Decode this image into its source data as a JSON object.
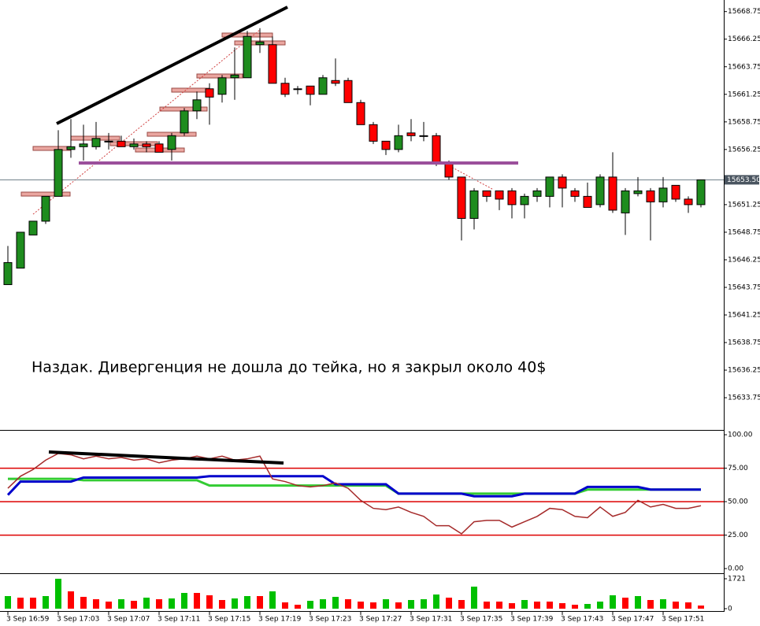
{
  "chart_data": [
    {
      "type": "candlestick",
      "annotation": "Наздак. Дивергенция не дошла до тейка, но я закрыл около 40$",
      "open": [
        15644.0,
        15645.5,
        15648.5,
        15649.75,
        15652.0,
        15656.25,
        15656.5,
        15656.5,
        15657.0,
        15657.0,
        15656.5,
        15656.75,
        15656.75,
        15656.25,
        15657.75,
        15659.75,
        15661.75,
        15661.25,
        15662.75,
        15662.75,
        15665.75,
        15665.75,
        15662.25,
        15661.75,
        15662.0,
        15661.25,
        15662.5,
        15662.5,
        15660.5,
        15658.5,
        15657.0,
        15656.25,
        15657.75,
        15657.5,
        15657.5,
        15655.0,
        15653.75,
        15650.0,
        15652.5,
        15652.5,
        15652.5,
        15651.25,
        15652.0,
        15652.0,
        15653.75,
        15652.5,
        15652.0,
        15651.25,
        15653.75,
        15650.5,
        15652.25,
        15652.5,
        15651.5,
        15653.0,
        15651.75,
        15651.25
      ],
      "high": [
        15647.5,
        15648.75,
        15649.75,
        15652.0,
        15658.0,
        15659.0,
        15658.5,
        15658.75,
        15657.75,
        15657.5,
        15657.25,
        15657.0,
        15657.0,
        15657.75,
        15660.0,
        15661.5,
        15662.25,
        15663.0,
        15665.5,
        15667.0,
        15667.25,
        15666.5,
        15662.75,
        15662.0,
        15662.0,
        15663.0,
        15664.5,
        15662.75,
        15660.75,
        15658.75,
        15657.0,
        15658.5,
        15659.0,
        15658.75,
        15657.75,
        15655.25,
        15653.75,
        15652.75,
        15652.5,
        15652.5,
        15652.75,
        15652.25,
        15652.75,
        15653.75,
        15654.0,
        15652.75,
        15653.25,
        15654.0,
        15656.0,
        15652.75,
        15653.75,
        15652.75,
        15653.75,
        15653.0,
        15652.0,
        15653.5
      ],
      "low": [
        15644.0,
        15645.5,
        15648.5,
        15649.5,
        15652.0,
        15655.5,
        15655.25,
        15656.25,
        15656.25,
        15656.5,
        15656.25,
        15656.0,
        15656.0,
        15655.25,
        15657.5,
        15659.0,
        15658.5,
        15660.5,
        15660.75,
        15662.75,
        15665.0,
        15662.25,
        15661.0,
        15661.25,
        15660.25,
        15661.25,
        15662.0,
        15660.5,
        15658.5,
        15656.75,
        15655.75,
        15656.0,
        15657.0,
        15657.0,
        15654.75,
        15653.5,
        15648.0,
        15649.0,
        15651.5,
        15650.75,
        15650.0,
        15650.0,
        15651.5,
        15651.0,
        15651.0,
        15651.5,
        15651.0,
        15651.0,
        15650.5,
        15648.5,
        15652.0,
        15648.0,
        15651.0,
        15651.5,
        15650.5,
        15651.0
      ],
      "close": [
        15646.0,
        15648.75,
        15649.75,
        15652.0,
        15656.25,
        15656.5,
        15656.75,
        15657.25,
        15657.0,
        15656.5,
        15656.75,
        15656.5,
        15656.0,
        15657.5,
        15659.75,
        15660.75,
        15661.0,
        15662.75,
        15663.0,
        15666.5,
        15666.0,
        15662.25,
        15661.25,
        15661.75,
        15661.25,
        15662.75,
        15662.25,
        15660.5,
        15658.5,
        15657.0,
        15656.25,
        15657.5,
        15657.5,
        15657.5,
        15655.0,
        15653.75,
        15650.0,
        15652.5,
        15652.0,
        15651.75,
        15651.25,
        15652.0,
        15652.5,
        15653.75,
        15652.75,
        15652.0,
        15651.0,
        15653.75,
        15650.75,
        15652.5,
        15652.5,
        15651.5,
        15652.75,
        15651.75,
        15651.25,
        15653.5
      ],
      "up_color": "#1e8c1e",
      "down_color": "#ff0000",
      "last_price": {
        "value": 15653.5,
        "label": "15653.50"
      },
      "ylim": [
        15630.9,
        15669.8
      ],
      "yticks": [
        15668.75,
        15666.25,
        15663.75,
        15661.25,
        15658.75,
        15656.25,
        15651.25,
        15648.75,
        15646.25,
        15643.75,
        15641.25,
        15638.75,
        15636.25,
        15633.75
      ]
    },
    {
      "type": "line",
      "series": [
        {
          "color": "#33cc33",
          "values": [
            67,
            67,
            67,
            67,
            67,
            67,
            66,
            66,
            66,
            66,
            66,
            66,
            66,
            66,
            66,
            66,
            62,
            62,
            62,
            62,
            62,
            62,
            62,
            62,
            62,
            62,
            62,
            62,
            62,
            62,
            62,
            56,
            56,
            56,
            56,
            56,
            56,
            56,
            56,
            56,
            56,
            56,
            56,
            56,
            56,
            56,
            59,
            59,
            59,
            59,
            59,
            59,
            59,
            59,
            59,
            59
          ]
        },
        {
          "color": "#0000cc",
          "values": [
            55,
            65,
            65,
            65,
            65,
            65,
            68,
            68,
            68,
            68,
            68,
            68,
            68,
            68,
            68,
            68,
            69,
            69,
            69,
            69,
            69,
            69,
            69,
            69,
            69,
            69,
            63,
            63,
            63,
            63,
            63,
            56,
            56,
            56,
            56,
            56,
            56,
            54,
            54,
            54,
            54,
            56,
            56,
            56,
            56,
            56,
            61,
            61,
            61,
            61,
            61,
            59,
            59,
            59,
            59,
            59
          ]
        },
        {
          "color": "#a52a2a",
          "values": [
            60,
            69,
            74,
            81,
            86,
            85,
            82,
            84,
            82,
            83,
            81,
            82,
            79,
            81,
            82,
            84,
            82,
            84,
            81,
            82,
            84,
            67,
            65,
            62,
            61,
            62,
            64,
            60,
            51,
            45,
            44,
            46,
            42,
            39,
            32,
            32,
            26,
            35,
            36,
            36,
            31,
            35,
            39,
            45,
            44,
            39,
            38,
            46,
            39,
            42,
            51,
            46,
            48,
            45,
            45,
            47
          ]
        }
      ],
      "levels": [
        75,
        50,
        25
      ],
      "level_color": "#dd0000",
      "ylim": [
        -2.9,
        102.4
      ],
      "yticks": [
        {
          "value": 100,
          "label": "100.00"
        },
        {
          "value": 75,
          "label": "75.00"
        },
        {
          "value": 50,
          "label": "50.00"
        },
        {
          "value": 25,
          "label": "25.00"
        },
        {
          "value": 0,
          "label": "0.00"
        }
      ]
    },
    {
      "type": "volume",
      "categories": [
        "3 Sep 16:59",
        null,
        null,
        null,
        "3 Sep 17:03",
        null,
        null,
        null,
        "3 Sep 17:07",
        null,
        null,
        null,
        "3 Sep 17:11",
        null,
        null,
        null,
        "3 Sep 17:15",
        null,
        null,
        null,
        "3 Sep 17:19",
        null,
        null,
        null,
        "3 Sep 17:23",
        null,
        null,
        null,
        "3 Sep 17:27",
        null,
        null,
        null,
        "3 Sep 17:31",
        null,
        null,
        null,
        "3 Sep 17:35",
        null,
        null,
        null,
        "3 Sep 17:39",
        null,
        null,
        null,
        "3 Sep 17:43",
        null,
        null,
        null,
        "3 Sep 17:47",
        null,
        null,
        null,
        "3 Sep 17:51",
        null,
        null,
        null
      ],
      "values": [
        725,
        634,
        634,
        725,
        1721,
        997,
        680,
        544,
        408,
        544,
        453,
        634,
        544,
        589,
        906,
        906,
        770,
        498,
        589,
        725,
        725,
        997,
        362,
        227,
        453,
        544,
        680,
        544,
        408,
        362,
        544,
        362,
        498,
        544,
        815,
        634,
        498,
        1268,
        408,
        408,
        317,
        498,
        408,
        408,
        317,
        227,
        272,
        408,
        770,
        634,
        725,
        498,
        544,
        408,
        362,
        181
      ],
      "up_color": "#00c000",
      "down_color": "#ff0000",
      "ylim": [
        0,
        1721
      ],
      "yticks": [
        1721,
        0
      ]
    }
  ]
}
